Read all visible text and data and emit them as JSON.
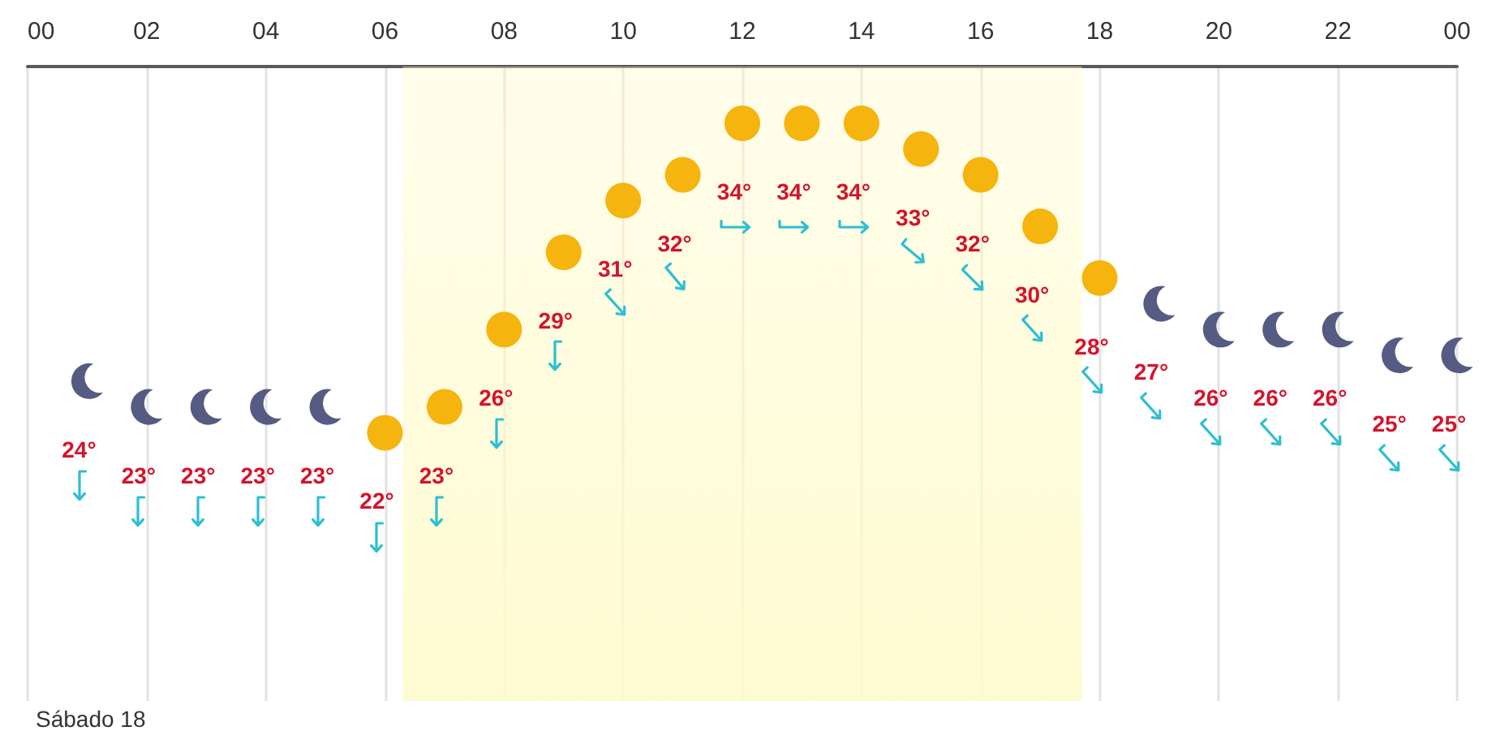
{
  "chart_data": {
    "type": "scatter",
    "x": [
      1,
      2,
      3,
      4,
      5,
      6,
      7,
      8,
      9,
      10,
      11,
      12,
      13,
      14,
      15,
      16,
      17,
      18,
      19,
      20,
      21,
      22,
      23,
      24
    ],
    "series": [
      {
        "color": "#f6b40e",
        "marker": "circle",
        "values": [
          null,
          null,
          null,
          null,
          null,
          22,
          23,
          26,
          29,
          31,
          32,
          34,
          34,
          34,
          33,
          32,
          30,
          28,
          null,
          null,
          null,
          null,
          null,
          null
        ],
        "value_labels": [
          null,
          null,
          null,
          null,
          null,
          "22°",
          "23°",
          "26°",
          "29°",
          "31°",
          "32°",
          "34°",
          "34°",
          "34°",
          "33°",
          "32°",
          "30°",
          "28°",
          null,
          null,
          null,
          null,
          null,
          null
        ]
      },
      {
        "color": "#565b83",
        "values": [
          24,
          23,
          23,
          23,
          23,
          null,
          null,
          null,
          null,
          null,
          null,
          null,
          null,
          null,
          null,
          null,
          null,
          null,
          27,
          26,
          26,
          26,
          25,
          25
        ],
        "value_labels": [
          "24°",
          "23°",
          "23°",
          "23°",
          "23°",
          null,
          null,
          null,
          null,
          null,
          null,
          null,
          null,
          null,
          null,
          null,
          null,
          null,
          "27°",
          "26°",
          "26°",
          "26°",
          "25°",
          "25°"
        ]
      }
    ],
    "xlim": [
      0,
      24
    ],
    "xticks": [
      {
        "value": 0,
        "label": "00"
      },
      {
        "value": 2,
        "label": "02"
      },
      {
        "value": 4,
        "label": "04"
      },
      {
        "value": 6,
        "label": "06"
      },
      {
        "value": 8,
        "label": "08"
      },
      {
        "value": 10,
        "label": "10"
      },
      {
        "value": 12,
        "label": "12"
      },
      {
        "value": 14,
        "label": "14"
      },
      {
        "value": 16,
        "label": "16"
      },
      {
        "value": 18,
        "label": "18"
      },
      {
        "value": 20,
        "label": "20"
      },
      {
        "value": 22,
        "label": "22"
      },
      {
        "value": 24,
        "label": "00"
      }
    ],
    "ylim": [
      11.6,
      36.2
    ],
    "tick_labels": "x",
    "grid": "x",
    "bands": [
      {
        "axis": "x",
        "from": 6.3,
        "to": 17.7,
        "color": "#fffbcc"
      }
    ],
    "annotations": [
      "Sábado 18"
    ]
  }
}
